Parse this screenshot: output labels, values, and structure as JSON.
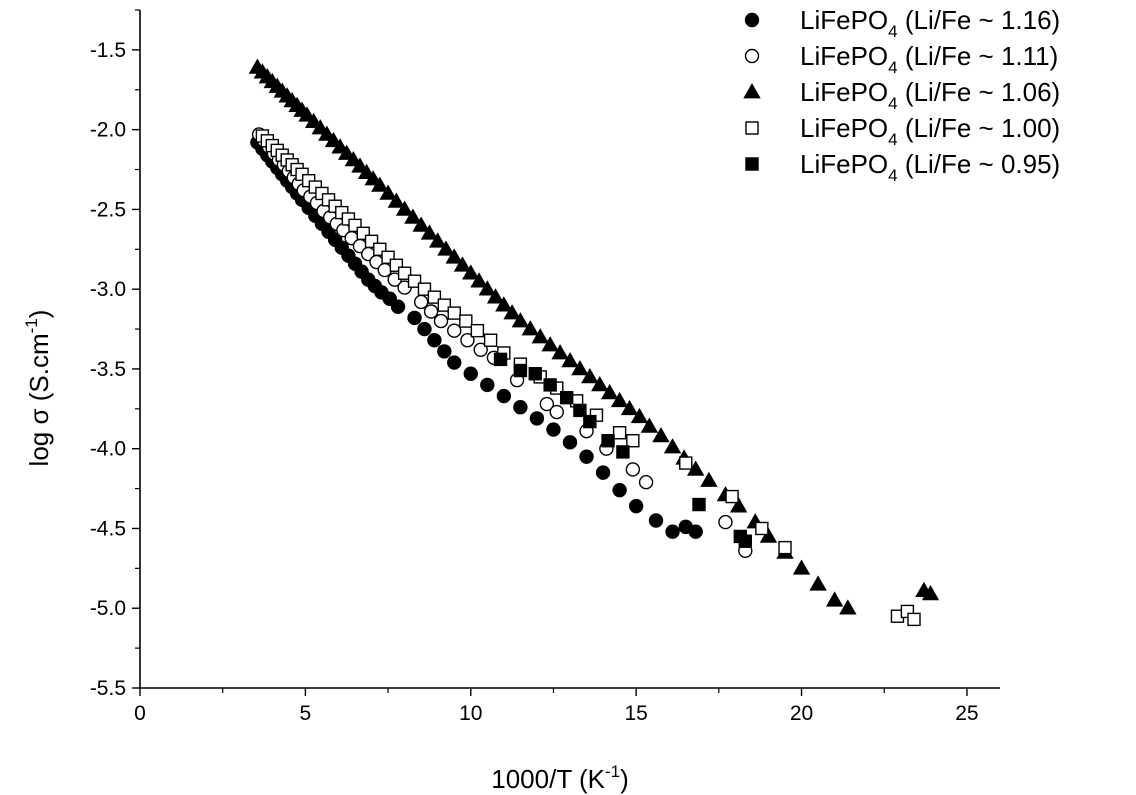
{
  "chart_data": {
    "type": "scatter",
    "xlabel": {
      "main": "1000/T (K",
      "sup": "-1",
      "tail": ")"
    },
    "ylabel": {
      "main": "log σ (S.cm",
      "sup": "-1",
      "tail": ")"
    },
    "xlim": [
      0,
      26
    ],
    "ylim": [
      -5.5,
      -1.25
    ],
    "xticks": [
      0,
      5,
      10,
      15,
      20,
      25
    ],
    "xtick_labels": [
      "0",
      "5",
      "10",
      "15",
      "20",
      "25"
    ],
    "yticks": [
      -5.5,
      -5.0,
      -4.5,
      -4.0,
      -3.5,
      -3.0,
      -2.5,
      -2.0,
      -1.5
    ],
    "ytick_labels": [
      "-5.5",
      "-5.0",
      "-4.5",
      "-4.0",
      "-3.5",
      "-3.0",
      "-2.5",
      "-2.0",
      "-1.5"
    ],
    "grid": false,
    "legend_position": "top-right",
    "series": [
      {
        "name": {
          "main": "LiFePO",
          "sub": "4",
          "tail": " (Li/Fe ~ 1.16)"
        },
        "marker": "circle-filled",
        "color": "#000000",
        "points": [
          [
            3.55,
            -2.08
          ],
          [
            3.7,
            -2.12
          ],
          [
            3.85,
            -2.16
          ],
          [
            4.0,
            -2.2
          ],
          [
            4.15,
            -2.24
          ],
          [
            4.3,
            -2.28
          ],
          [
            4.45,
            -2.32
          ],
          [
            4.6,
            -2.36
          ],
          [
            4.75,
            -2.4
          ],
          [
            4.9,
            -2.44
          ],
          [
            5.1,
            -2.49
          ],
          [
            5.3,
            -2.54
          ],
          [
            5.5,
            -2.59
          ],
          [
            5.7,
            -2.64
          ],
          [
            5.9,
            -2.69
          ],
          [
            6.1,
            -2.74
          ],
          [
            6.3,
            -2.79
          ],
          [
            6.5,
            -2.84
          ],
          [
            6.7,
            -2.89
          ],
          [
            6.9,
            -2.94
          ],
          [
            7.1,
            -2.98
          ],
          [
            7.3,
            -3.02
          ],
          [
            7.55,
            -3.06
          ],
          [
            7.8,
            -3.11
          ],
          [
            8.3,
            -3.18
          ],
          [
            8.6,
            -3.25
          ],
          [
            8.9,
            -3.32
          ],
          [
            9.2,
            -3.39
          ],
          [
            9.5,
            -3.46
          ],
          [
            10.0,
            -3.53
          ],
          [
            10.5,
            -3.6
          ],
          [
            11.0,
            -3.67
          ],
          [
            11.5,
            -3.74
          ],
          [
            12.0,
            -3.81
          ],
          [
            12.5,
            -3.88
          ],
          [
            13.0,
            -3.96
          ],
          [
            13.5,
            -4.05
          ],
          [
            14.0,
            -4.15
          ],
          [
            14.5,
            -4.26
          ],
          [
            15.0,
            -4.36
          ],
          [
            15.6,
            -4.45
          ],
          [
            16.1,
            -4.52
          ],
          [
            16.5,
            -4.49
          ],
          [
            16.8,
            -4.52
          ]
        ]
      },
      {
        "name": {
          "main": "LiFePO",
          "sub": "4",
          "tail": " (Li/Fe ~ 1.11)"
        },
        "marker": "circle-open",
        "color": "#000000",
        "points": [
          [
            3.6,
            -2.03
          ],
          [
            3.75,
            -2.07
          ],
          [
            3.9,
            -2.11
          ],
          [
            4.05,
            -2.15
          ],
          [
            4.2,
            -2.19
          ],
          [
            4.35,
            -2.22
          ],
          [
            4.5,
            -2.26
          ],
          [
            4.65,
            -2.3
          ],
          [
            4.8,
            -2.34
          ],
          [
            4.95,
            -2.38
          ],
          [
            5.15,
            -2.42
          ],
          [
            5.35,
            -2.46
          ],
          [
            5.55,
            -2.51
          ],
          [
            5.75,
            -2.55
          ],
          [
            5.95,
            -2.59
          ],
          [
            6.15,
            -2.63
          ],
          [
            6.4,
            -2.68
          ],
          [
            6.65,
            -2.73
          ],
          [
            6.9,
            -2.78
          ],
          [
            7.15,
            -2.83
          ],
          [
            7.4,
            -2.88
          ],
          [
            7.7,
            -2.94
          ],
          [
            8.0,
            -2.99
          ],
          [
            8.5,
            -3.08
          ],
          [
            8.8,
            -3.14
          ],
          [
            9.1,
            -3.2
          ],
          [
            9.5,
            -3.26
          ],
          [
            9.9,
            -3.32
          ],
          [
            10.3,
            -3.38
          ],
          [
            10.7,
            -3.43
          ],
          [
            11.4,
            -3.57
          ],
          [
            12.3,
            -3.72
          ],
          [
            12.6,
            -3.77
          ],
          [
            13.5,
            -3.89
          ],
          [
            14.1,
            -4.0
          ],
          [
            14.9,
            -4.13
          ],
          [
            15.3,
            -4.21
          ],
          [
            17.7,
            -4.46
          ],
          [
            18.3,
            -4.64
          ]
        ]
      },
      {
        "name": {
          "main": "LiFePO",
          "sub": "4",
          "tail": " (Li/Fe ~ 1.06)"
        },
        "marker": "triangle-filled",
        "color": "#000000",
        "points": [
          [
            3.55,
            -1.61
          ],
          [
            3.7,
            -1.64
          ],
          [
            3.85,
            -1.67
          ],
          [
            4.0,
            -1.7
          ],
          [
            4.15,
            -1.73
          ],
          [
            4.3,
            -1.76
          ],
          [
            4.45,
            -1.79
          ],
          [
            4.6,
            -1.82
          ],
          [
            4.75,
            -1.85
          ],
          [
            4.9,
            -1.88
          ],
          [
            5.05,
            -1.91
          ],
          [
            5.25,
            -1.95
          ],
          [
            5.45,
            -1.99
          ],
          [
            5.65,
            -2.03
          ],
          [
            5.85,
            -2.07
          ],
          [
            6.05,
            -2.11
          ],
          [
            6.25,
            -2.15
          ],
          [
            6.45,
            -2.19
          ],
          [
            6.65,
            -2.23
          ],
          [
            6.85,
            -2.27
          ],
          [
            7.05,
            -2.31
          ],
          [
            7.25,
            -2.35
          ],
          [
            7.5,
            -2.4
          ],
          [
            7.75,
            -2.45
          ],
          [
            8.0,
            -2.5
          ],
          [
            8.25,
            -2.55
          ],
          [
            8.5,
            -2.6
          ],
          [
            8.75,
            -2.65
          ],
          [
            9.0,
            -2.7
          ],
          [
            9.25,
            -2.75
          ],
          [
            9.5,
            -2.8
          ],
          [
            9.75,
            -2.85
          ],
          [
            10.0,
            -2.9
          ],
          [
            10.25,
            -2.95
          ],
          [
            10.5,
            -3.0
          ],
          [
            10.75,
            -3.05
          ],
          [
            11.0,
            -3.1
          ],
          [
            11.25,
            -3.15
          ],
          [
            11.5,
            -3.2
          ],
          [
            11.8,
            -3.25
          ],
          [
            12.1,
            -3.3
          ],
          [
            12.4,
            -3.35
          ],
          [
            12.7,
            -3.4
          ],
          [
            13.0,
            -3.45
          ],
          [
            13.3,
            -3.5
          ],
          [
            13.6,
            -3.55
          ],
          [
            13.9,
            -3.6
          ],
          [
            14.2,
            -3.65
          ],
          [
            14.5,
            -3.7
          ],
          [
            14.8,
            -3.75
          ],
          [
            15.1,
            -3.8
          ],
          [
            15.4,
            -3.86
          ],
          [
            15.75,
            -3.92
          ],
          [
            16.1,
            -3.99
          ],
          [
            16.45,
            -4.06
          ],
          [
            16.8,
            -4.13
          ],
          [
            17.2,
            -4.2
          ],
          [
            17.7,
            -4.29
          ],
          [
            18.1,
            -4.36
          ],
          [
            18.6,
            -4.46
          ],
          [
            19.0,
            -4.55
          ],
          [
            19.5,
            -4.65
          ],
          [
            20.0,
            -4.75
          ],
          [
            20.5,
            -4.85
          ],
          [
            21.0,
            -4.95
          ],
          [
            21.4,
            -5.0
          ],
          [
            23.7,
            -4.89
          ],
          [
            23.9,
            -4.91
          ]
        ]
      },
      {
        "name": {
          "main": "LiFePO",
          "sub": "4",
          "tail": " (Li/Fe ~ 1.00)"
        },
        "marker": "square-open",
        "color": "#000000",
        "points": [
          [
            3.7,
            -2.04
          ],
          [
            3.85,
            -2.07
          ],
          [
            4.0,
            -2.1
          ],
          [
            4.15,
            -2.13
          ],
          [
            4.3,
            -2.16
          ],
          [
            4.45,
            -2.19
          ],
          [
            4.6,
            -2.22
          ],
          [
            4.75,
            -2.25
          ],
          [
            4.9,
            -2.28
          ],
          [
            5.1,
            -2.32
          ],
          [
            5.3,
            -2.36
          ],
          [
            5.5,
            -2.4
          ],
          [
            5.7,
            -2.44
          ],
          [
            5.9,
            -2.48
          ],
          [
            6.1,
            -2.52
          ],
          [
            6.3,
            -2.56
          ],
          [
            6.5,
            -2.6
          ],
          [
            6.75,
            -2.65
          ],
          [
            7.0,
            -2.7
          ],
          [
            7.25,
            -2.75
          ],
          [
            7.5,
            -2.8
          ],
          [
            7.75,
            -2.85
          ],
          [
            8.0,
            -2.9
          ],
          [
            8.3,
            -2.95
          ],
          [
            8.6,
            -3.0
          ],
          [
            8.9,
            -3.05
          ],
          [
            9.2,
            -3.1
          ],
          [
            9.5,
            -3.15
          ],
          [
            9.85,
            -3.2
          ],
          [
            10.2,
            -3.26
          ],
          [
            10.6,
            -3.32
          ],
          [
            11.0,
            -3.4
          ],
          [
            11.5,
            -3.47
          ],
          [
            12.1,
            -3.55
          ],
          [
            12.6,
            -3.62
          ],
          [
            13.2,
            -3.7
          ],
          [
            13.8,
            -3.79
          ],
          [
            14.5,
            -3.9
          ],
          [
            14.9,
            -3.95
          ],
          [
            16.5,
            -4.09
          ],
          [
            17.9,
            -4.3
          ],
          [
            18.8,
            -4.5
          ],
          [
            19.5,
            -4.62
          ],
          [
            22.9,
            -5.05
          ],
          [
            23.2,
            -5.02
          ],
          [
            23.4,
            -5.07
          ]
        ]
      },
      {
        "name": {
          "main": "LiFePO",
          "sub": "4",
          "tail": " (Li/Fe ~ 0.95)"
        },
        "marker": "square-filled",
        "color": "#000000",
        "points": [
          [
            10.9,
            -3.44
          ],
          [
            11.5,
            -3.51
          ],
          [
            11.95,
            -3.53
          ],
          [
            12.4,
            -3.6
          ],
          [
            12.9,
            -3.68
          ],
          [
            13.3,
            -3.76
          ],
          [
            13.6,
            -3.83
          ],
          [
            14.15,
            -3.95
          ],
          [
            14.6,
            -4.02
          ],
          [
            16.9,
            -4.35
          ],
          [
            18.15,
            -4.55
          ],
          [
            18.3,
            -4.58
          ]
        ]
      }
    ]
  }
}
